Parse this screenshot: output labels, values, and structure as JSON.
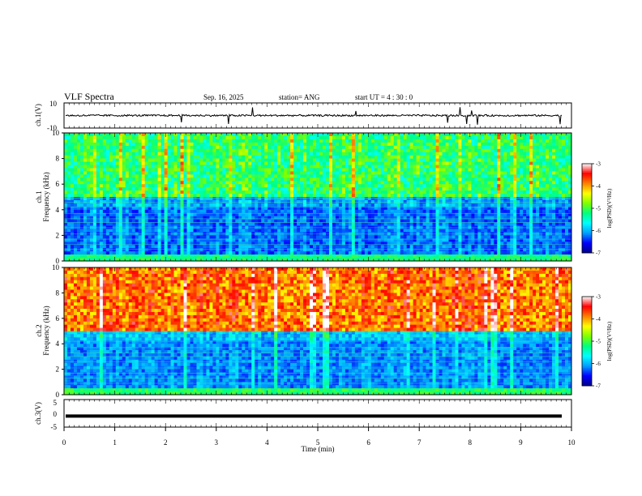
{
  "header": {
    "title": "VLF Spectra",
    "date": "Sep. 16, 2025",
    "station": "station= ANG",
    "start": "start  UT =   4 : 30 : 0"
  },
  "chart_data": [
    {
      "type": "line",
      "name": "ch1-waveform",
      "ylabel": "ch.1(V)",
      "ylim": [
        -10,
        10
      ],
      "yticks": [
        "10",
        "-10"
      ],
      "xlim": [
        0,
        10
      ]
    },
    {
      "type": "heatmap",
      "name": "ch1-spectrogram",
      "ylabel_line1": "ch.1",
      "ylabel_line2": "Frequency (kHz)",
      "xlim": [
        0,
        10
      ],
      "ylim": [
        0,
        10
      ],
      "yticks": [
        "0",
        "2",
        "4",
        "6",
        "8",
        "10"
      ],
      "colorbar": {
        "label": "log(PSD)(V²/Hz)",
        "range": [
          -7,
          -3
        ],
        "ticks": [
          "-3",
          "-4",
          "-5",
          "-6",
          "-7"
        ],
        "colors": [
          "#00008b",
          "#0000ff",
          "#00a0ff",
          "#00ffff",
          "#00ff80",
          "#80ff00",
          "#ffff00",
          "#ff8000",
          "#ff0000",
          "#ffffff"
        ]
      },
      "background_level": -6.3,
      "high_freq_level": -5.2
    },
    {
      "type": "heatmap",
      "name": "ch2-spectrogram",
      "ylabel_line1": "ch.2",
      "ylabel_line2": "Frequency (kHz)",
      "xlim": [
        0,
        10
      ],
      "ylim": [
        0,
        10
      ],
      "yticks": [
        "0",
        "2",
        "4",
        "6",
        "8",
        "10"
      ],
      "colorbar": {
        "label": "log(PSD)(V²/Hz)",
        "range": [
          -7,
          -3
        ],
        "ticks": [
          "-3",
          "-4",
          "-5",
          "-6",
          "-7"
        ],
        "colors": [
          "#00008b",
          "#0000ff",
          "#00a0ff",
          "#00ffff",
          "#00ff80",
          "#80ff00",
          "#ffff00",
          "#ff8000",
          "#ff0000",
          "#ffffff"
        ]
      },
      "background_level": -6.2,
      "high_freq_level": -3.9
    },
    {
      "type": "line",
      "name": "ch3-waveform",
      "ylabel": "ch.3(V)",
      "ylim": [
        -5,
        5
      ],
      "yticks": [
        "5",
        "0",
        "-5"
      ],
      "xlim": [
        0,
        10
      ],
      "xlabel": "Time (min)",
      "xticks": [
        "0",
        "1",
        "2",
        "3",
        "4",
        "5",
        "6",
        "7",
        "8",
        "9",
        "10"
      ],
      "value": -1
    }
  ]
}
